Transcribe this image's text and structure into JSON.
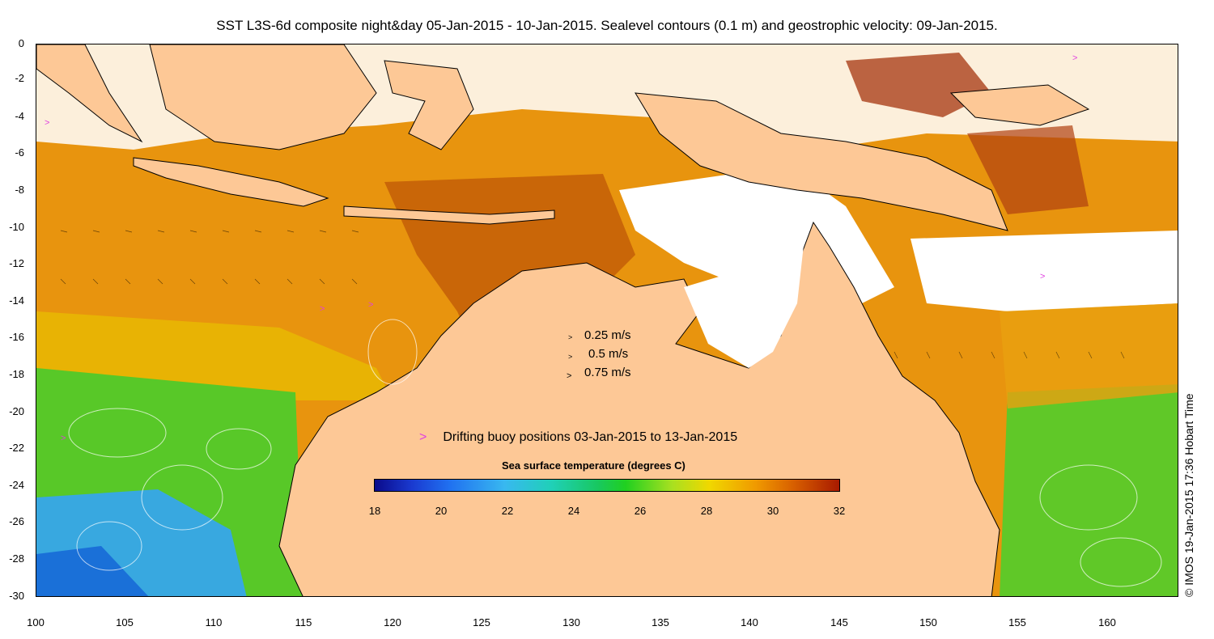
{
  "title": "SST L3S-6d composite night&day 05-Jan-2015 - 10-Jan-2015. Sealevel contours (0.1 m) and geostrophic velocity: 09-Jan-2015.",
  "axes": {
    "y_ticks": [
      "0",
      "-2",
      "-4",
      "-6",
      "-8",
      "-10",
      "-12",
      "-14",
      "-16",
      "-18",
      "-20",
      "-22",
      "-24",
      "-26",
      "-28",
      "-30"
    ],
    "x_ticks": [
      "100",
      "105",
      "110",
      "115",
      "120",
      "125",
      "130",
      "135",
      "140",
      "145",
      "150",
      "155",
      "160"
    ],
    "lon_range": [
      100,
      164
    ],
    "lat_range": [
      -30,
      0
    ]
  },
  "velocity_legend": [
    {
      "label": "0.25 m/s"
    },
    {
      "label": "0.5 m/s"
    },
    {
      "label": "0.75 m/s"
    }
  ],
  "buoy_legend": {
    "marker": ">",
    "label": "Drifting buoy positions 03-Jan-2015 to 13-Jan-2015",
    "color": "#e040e0"
  },
  "colorbar": {
    "title": "Sea surface temperature (degrees C)",
    "ticks": [
      "18",
      "20",
      "22",
      "24",
      "26",
      "28",
      "30",
      "32"
    ],
    "range": [
      18,
      32
    ]
  },
  "credit": "© IMOS 19-Jan-2015 17:36 Hobart Time",
  "colors": {
    "land": "#fdc896",
    "cloud": "#ffffff",
    "warm": "#e08a10",
    "hot": "#b83c00",
    "mild": "#f0c000",
    "green": "#50c820",
    "cool": "#30a8e0"
  }
}
